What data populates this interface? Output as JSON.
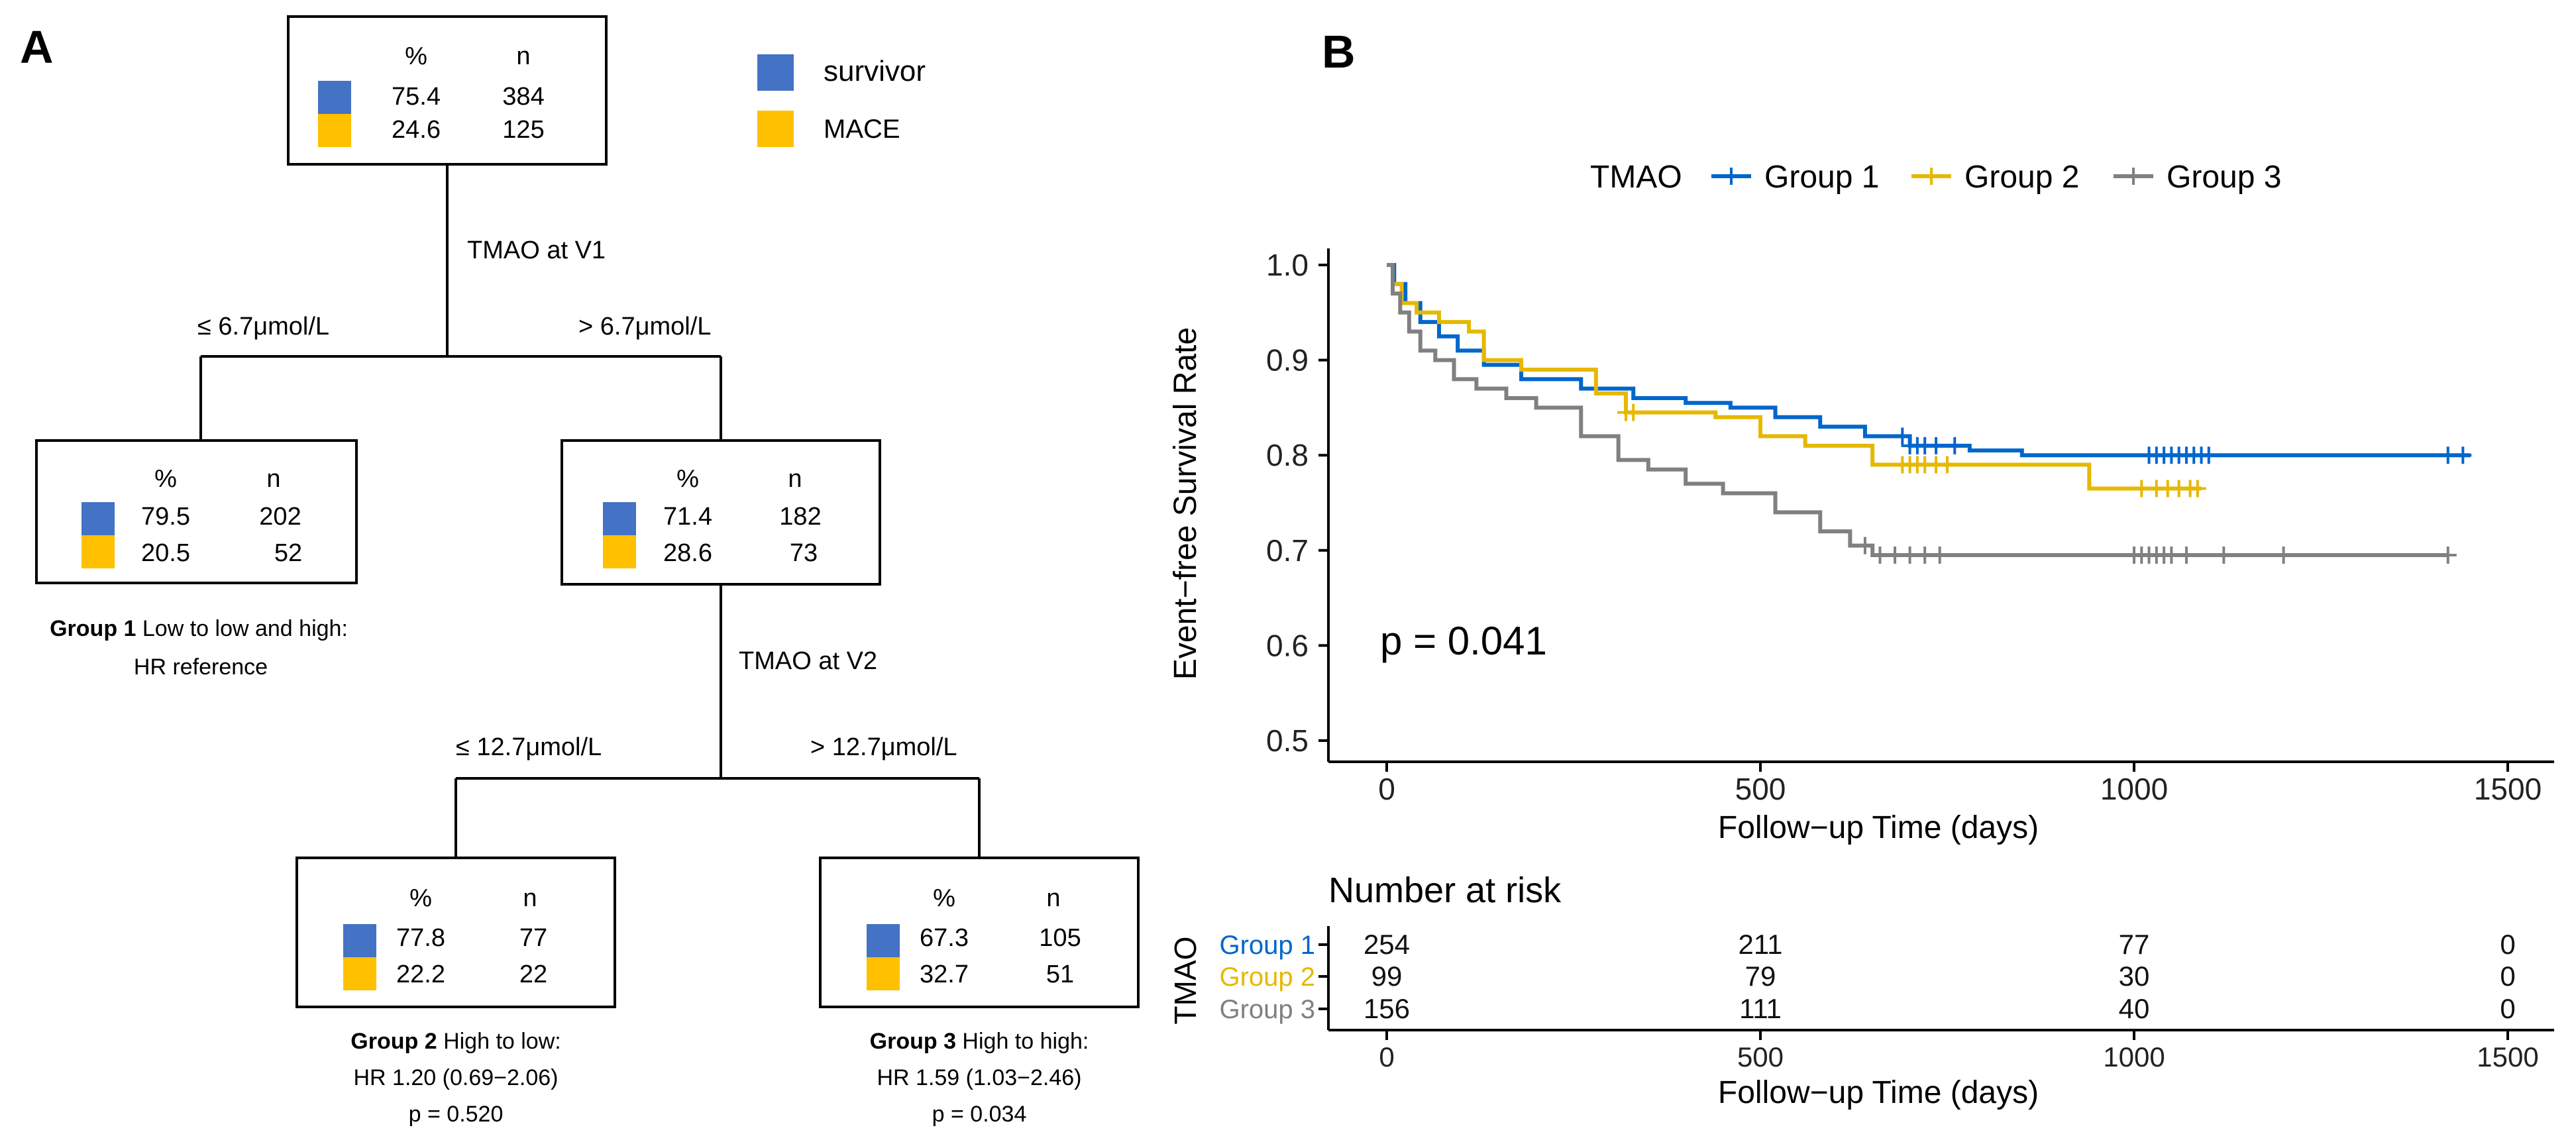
{
  "panel_a": {
    "label": "A",
    "header_pct": "%",
    "header_n": "n",
    "legend": [
      {
        "name": "survivor",
        "color": "#4472C4"
      },
      {
        "name": "MACE",
        "color": "#FFC000"
      }
    ],
    "root": {
      "r1_pct": "75.4",
      "r1_n": "384",
      "r2_pct": "24.6",
      "r2_n": "125"
    },
    "split1_label": "TMAO at V1",
    "split1_left": "≤ 6.7μmol/L",
    "split1_right": "> 6.7μmol/L",
    "node_g1": {
      "r1_pct": "79.5",
      "r1_n": "202",
      "r2_pct": "20.5",
      "r2_n": "52"
    },
    "node_mid": {
      "r1_pct": "71.4",
      "r1_n": "182",
      "r2_pct": "28.6",
      "r2_n": "73"
    },
    "split2_label": "TMAO at V2",
    "split2_left": "≤ 12.7μmol/L",
    "split2_right": "> 12.7μmol/L",
    "node_g2": {
      "r1_pct": "77.8",
      "r1_n": "77",
      "r2_pct": "22.2",
      "r2_n": "22"
    },
    "node_g3": {
      "r1_pct": "67.3",
      "r1_n": "105",
      "r2_pct": "32.7",
      "r2_n": "51"
    },
    "caption_g1": {
      "bold": "Group 1",
      "text": " Low to low and high:",
      "line2": "HR reference"
    },
    "caption_g2": {
      "bold": "Group 2",
      "text": " High to low:",
      "line2": "HR 1.20 (0.69−2.06)",
      "line3": "p = 0.520"
    },
    "caption_g3": {
      "bold": "Group 3",
      "text": " High to high:",
      "line2": "HR 1.59 (1.03−2.46)",
      "line3": "p = 0.034"
    }
  },
  "panel_b": {
    "label": "B",
    "pvalue": "p = 0.041",
    "risk_title": "Number at risk",
    "risk_ylabel": "TMAO",
    "risk_xlabel": "Follow−up Time (days)",
    "risk_table": [
      {
        "group": "Group 1",
        "color": "#0066CC",
        "counts": [
          "254",
          "211",
          "77",
          "0"
        ]
      },
      {
        "group": "Group 2",
        "color": "#E6B800",
        "counts": [
          "99",
          "79",
          "30",
          "0"
        ]
      },
      {
        "group": "Group 3",
        "color": "#808080",
        "counts": [
          "156",
          "111",
          "40",
          "0"
        ]
      }
    ]
  },
  "chart_data": {
    "type": "line",
    "title": "",
    "xlabel": "Follow−up Time (days)",
    "ylabel": "Event−free Survival Rate",
    "xlim": [
      0,
      1500
    ],
    "ylim": [
      0.5,
      1.0
    ],
    "xticks": [
      "0",
      "500",
      "1000",
      "1500"
    ],
    "yticks": [
      "0.5",
      "0.6",
      "0.7",
      "0.8",
      "0.9",
      "1.0"
    ],
    "legend_title": "TMAO",
    "legend_position": "top",
    "series": [
      {
        "name": "Group 1",
        "color": "#0066CC",
        "x": [
          0,
          10,
          25,
          45,
          70,
          95,
          130,
          180,
          260,
          330,
          400,
          460,
          520,
          580,
          640,
          700,
          780,
          850,
          1450
        ],
        "y": [
          1.0,
          0.98,
          0.96,
          0.94,
          0.925,
          0.91,
          0.895,
          0.88,
          0.87,
          0.86,
          0.855,
          0.85,
          0.84,
          0.83,
          0.82,
          0.81,
          0.805,
          0.8,
          0.8
        ],
        "censor_x": [
          690,
          700,
          710,
          720,
          735,
          760,
          1020,
          1030,
          1040,
          1050,
          1060,
          1070,
          1080,
          1090,
          1100,
          1420,
          1440
        ]
      },
      {
        "name": "Group 2",
        "color": "#E6B800",
        "x": [
          0,
          8,
          20,
          40,
          70,
          110,
          130,
          180,
          280,
          320,
          440,
          500,
          560,
          650,
          940,
          1090
        ],
        "y": [
          1.0,
          0.98,
          0.96,
          0.95,
          0.94,
          0.93,
          0.9,
          0.89,
          0.865,
          0.845,
          0.84,
          0.82,
          0.81,
          0.79,
          0.765,
          0.765
        ],
        "censor_x": [
          320,
          330,
          690,
          700,
          710,
          720,
          735,
          750,
          1010,
          1030,
          1045,
          1060,
          1075,
          1085
        ]
      },
      {
        "name": "Group 3",
        "color": "#808080",
        "x": [
          0,
          8,
          18,
          30,
          45,
          65,
          90,
          120,
          160,
          200,
          260,
          310,
          350,
          400,
          450,
          520,
          580,
          620,
          650,
          1420
        ],
        "y": [
          1.0,
          0.97,
          0.95,
          0.93,
          0.91,
          0.9,
          0.88,
          0.87,
          0.86,
          0.85,
          0.82,
          0.795,
          0.785,
          0.77,
          0.76,
          0.74,
          0.72,
          0.705,
          0.695,
          0.695
        ],
        "censor_x": [
          640,
          660,
          680,
          700,
          720,
          740,
          1000,
          1010,
          1020,
          1030,
          1040,
          1050,
          1070,
          1120,
          1200,
          1420
        ]
      }
    ]
  }
}
